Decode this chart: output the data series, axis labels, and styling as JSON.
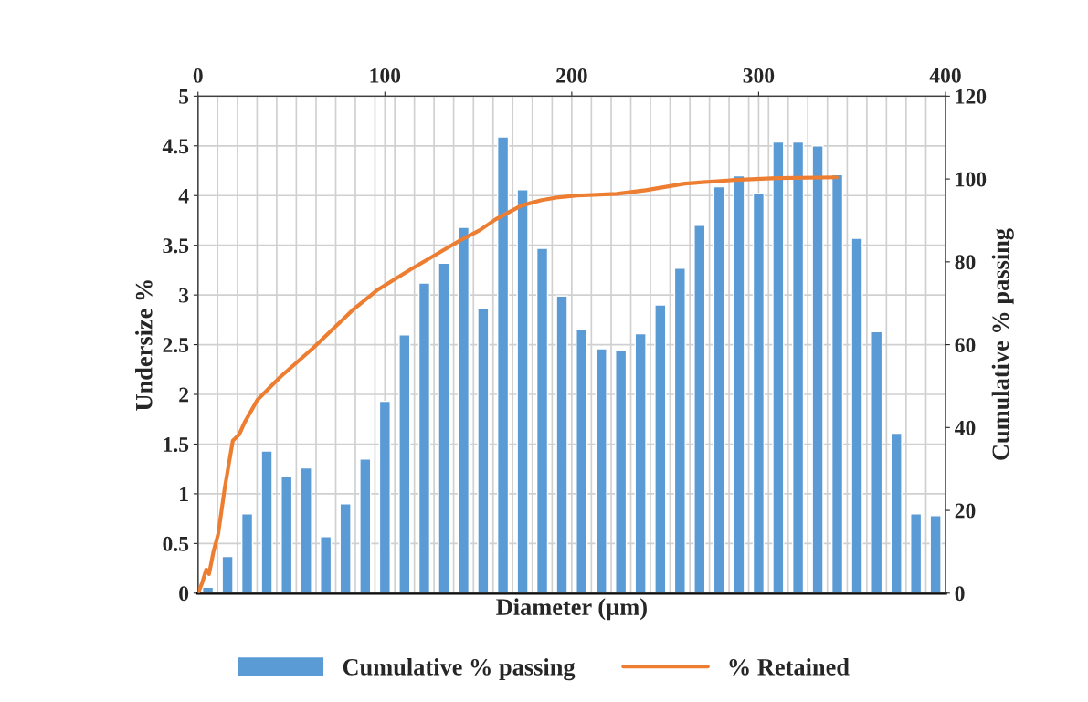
{
  "chart_data": {
    "type": "bar",
    "xlabel": "Diameter (µm)",
    "ylabel": "Undersize %",
    "y2label": "Cumulative % passing",
    "series": [
      {
        "name": "Cumulative % passing",
        "color": "#5b9bd5",
        "x": [
          5.3,
          15.8,
          26.3,
          36.8,
          47.4,
          57.9,
          68.4,
          78.9,
          89.5,
          100.0,
          110.5,
          121.1,
          131.6,
          142.1,
          152.6,
          163.2,
          173.7,
          184.2,
          194.7,
          205.3,
          215.8,
          226.3,
          236.8,
          247.4,
          257.9,
          268.4,
          278.9,
          289.5,
          300.0,
          310.5,
          321.1,
          331.6,
          342.1,
          352.6,
          363.2,
          373.7,
          384.2,
          394.7
        ],
        "values": [
          0.06,
          0.37,
          0.8,
          1.43,
          1.18,
          1.26,
          0.57,
          0.9,
          1.35,
          1.93,
          2.6,
          3.12,
          3.32,
          3.68,
          2.86,
          4.59,
          4.06,
          3.47,
          2.99,
          2.65,
          2.46,
          2.44,
          2.61,
          2.9,
          3.27,
          3.7,
          4.09,
          4.2,
          4.02,
          4.54,
          4.54,
          4.5,
          4.21,
          3.57,
          2.63,
          1.61,
          0.8,
          0.78
        ]
      },
      {
        "name": "% Retained",
        "type": "line",
        "axis": "y2",
        "color": "#ed7d31",
        "x": [
          0,
          2,
          4.4,
          5.9,
          8.3,
          10.8,
          14.2,
          18.6,
          22,
          24.9,
          31.8,
          44,
          61.6,
          82.6,
          96.3,
          113.9,
          140.3,
          150.6,
          159.4,
          173.1,
          183.9,
          193.2,
          202.9,
          224,
          239.6,
          260.6,
          285.1,
          309.5,
          341.8
        ],
        "values": [
          0,
          2.2,
          5.7,
          4.6,
          10.1,
          14.3,
          25.1,
          36.8,
          38.3,
          41.2,
          46.7,
          52.2,
          59.2,
          68.3,
          73.3,
          78.2,
          85.2,
          87.6,
          90.3,
          93.6,
          94.9,
          95.6,
          96,
          96.4,
          97.3,
          98.9,
          99.7,
          100.2,
          100.4
        ]
      }
    ],
    "xlim": [
      0,
      400
    ],
    "xticks": [
      0,
      {
        "value": 10.5,
        "label": null
      },
      {
        "value": 21.1,
        "label": null
      },
      {
        "value": 31.6,
        "label": null
      },
      {
        "value": 42.1,
        "label": null
      },
      {
        "value": 52.6,
        "label": null
      },
      {
        "value": 63.2,
        "label": null
      },
      {
        "value": 73.7,
        "label": null
      },
      {
        "value": 84.2,
        "label": null
      },
      {
        "value": 94.7,
        "label": null
      },
      100,
      {
        "value": 105.3,
        "label": null
      },
      {
        "value": 115.8,
        "label": null
      },
      {
        "value": 126.3,
        "label": null
      },
      {
        "value": 136.8,
        "label": null
      },
      {
        "value": 147.4,
        "label": null
      },
      {
        "value": 157.9,
        "label": null
      },
      {
        "value": 168.4,
        "label": null
      },
      {
        "value": 178.9,
        "label": null
      },
      {
        "value": 189.5,
        "label": null
      },
      200,
      {
        "value": 210.5,
        "label": null
      },
      {
        "value": 221.1,
        "label": null
      },
      {
        "value": 231.6,
        "label": null
      },
      {
        "value": 242.1,
        "label": null
      },
      {
        "value": 252.6,
        "label": null
      },
      {
        "value": 263.2,
        "label": null
      },
      {
        "value": 273.7,
        "label": null
      },
      {
        "value": 284.2,
        "label": null
      },
      {
        "value": 294.7,
        "label": null
      },
      300,
      {
        "value": 305.3,
        "label": null
      },
      {
        "value": 315.8,
        "label": null
      },
      {
        "value": 326.3,
        "label": null
      },
      {
        "value": 336.8,
        "label": null
      },
      {
        "value": 347.4,
        "label": null
      },
      {
        "value": 357.9,
        "label": null
      },
      {
        "value": 368.4,
        "label": null
      },
      {
        "value": 378.9,
        "label": null
      },
      {
        "value": 389.5,
        "label": null
      },
      400
    ],
    "ylim": [
      0,
      5
    ],
    "yticks": [
      0,
      0.5,
      1,
      1.5,
      2,
      2.5,
      3,
      3.5,
      4,
      4.5,
      5
    ],
    "y2lim": [
      0,
      120
    ],
    "y2ticks": [
      0,
      20,
      40,
      60,
      80,
      100,
      120
    ],
    "grid": true,
    "legend": "bottom"
  }
}
